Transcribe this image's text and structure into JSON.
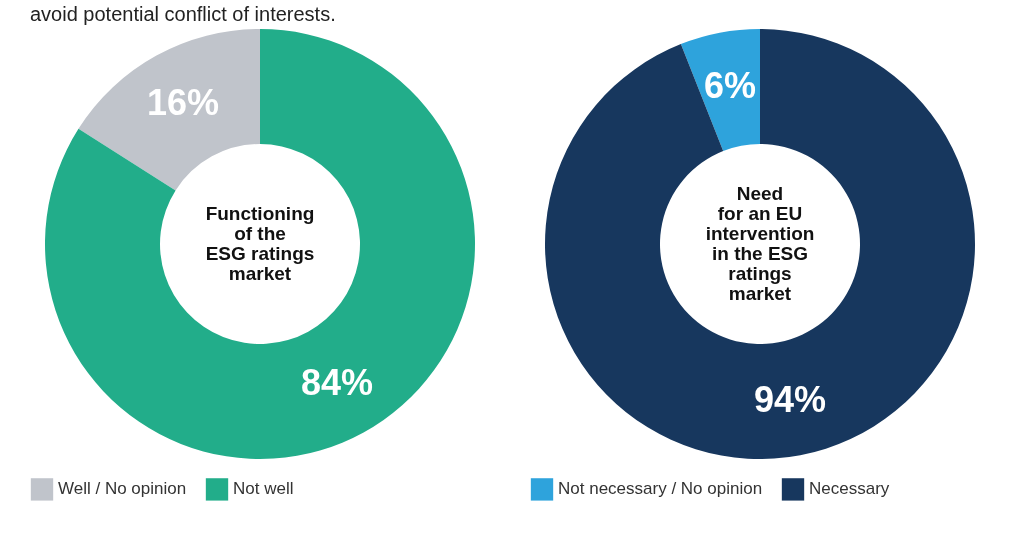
{
  "chart_data": [
    {
      "type": "donut",
      "title": "Functioning\nof the\nESG ratings\nmarket",
      "annotations": [
        "avoid potential conflict of interests."
      ],
      "categories": [
        "Well / No opinion",
        "Not well"
      ],
      "values": [
        16,
        84
      ],
      "colors": [
        "#c0c4cb",
        "#22ad8a"
      ],
      "value_labels": [
        "16%",
        "84%"
      ],
      "legend": "bottom"
    },
    {
      "type": "donut",
      "title": "Need\nfor an EU\nintervention\nin the ESG\nratings\nmarket",
      "categories": [
        "Not necessary / No opinion",
        "Necessary"
      ],
      "values": [
        6,
        94
      ],
      "colors": [
        "#2ea3dc",
        "#17375e"
      ],
      "value_labels": [
        "6%",
        "94%"
      ],
      "legend": "bottom"
    }
  ]
}
